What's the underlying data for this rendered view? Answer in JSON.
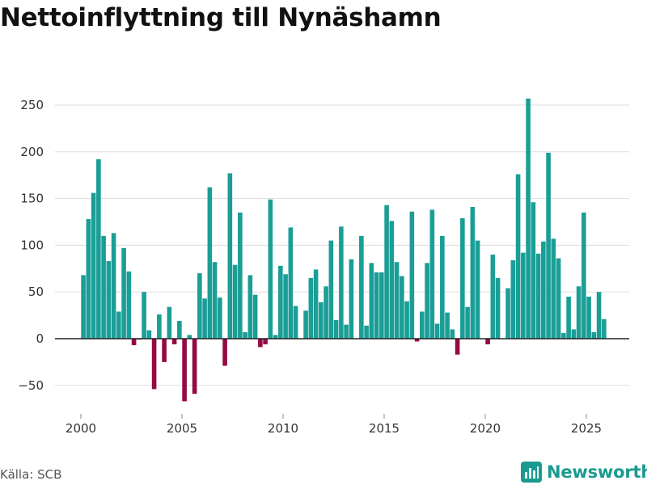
{
  "title": "Nettoinflyttning till Nynäshamn",
  "source": "Källa: SCB",
  "brand": "Newsworthy",
  "colors": {
    "positive": "#1a9e96",
    "negative": "#960a44",
    "grid": "#dddddd",
    "axis": "#222222",
    "brand": "#1a9a90"
  },
  "chart_data": {
    "type": "bar",
    "title": "Nettoinflyttning till Nynäshamn",
    "xlabel": "",
    "ylabel": "",
    "ylim": [
      -55,
      270
    ],
    "xlim": [
      1999.5,
      2027
    ],
    "yticks": [
      -50,
      0,
      50,
      100,
      150,
      200,
      250
    ],
    "xticks": [
      2000,
      2005,
      2010,
      2015,
      2020,
      2025
    ],
    "period": "quarterly",
    "x_start": 2000.0,
    "x_step": 0.25,
    "values": [
      68,
      128,
      156,
      192,
      110,
      83,
      113,
      29,
      97,
      72,
      -7,
      -1,
      50,
      9,
      -54,
      26,
      -25,
      34,
      -6,
      19,
      -67,
      4,
      -59,
      70,
      43,
      162,
      82,
      44,
      -29,
      177,
      79,
      135,
      7,
      68,
      47,
      -9,
      -6,
      149,
      4,
      78,
      69,
      119,
      35,
      0,
      30,
      65,
      74,
      39,
      56,
      105,
      20,
      120,
      15,
      85,
      0,
      110,
      14,
      81,
      71,
      71,
      143,
      126,
      82,
      67,
      40,
      136,
      -3,
      29,
      81,
      138,
      16,
      110,
      28,
      10,
      -17,
      129,
      34,
      141,
      105,
      0,
      -6,
      90,
      65,
      0,
      54,
      84,
      176,
      92,
      257,
      146,
      91,
      104,
      199,
      107,
      86,
      6,
      45,
      10,
      56,
      135,
      45,
      7,
      50,
      21
    ]
  }
}
